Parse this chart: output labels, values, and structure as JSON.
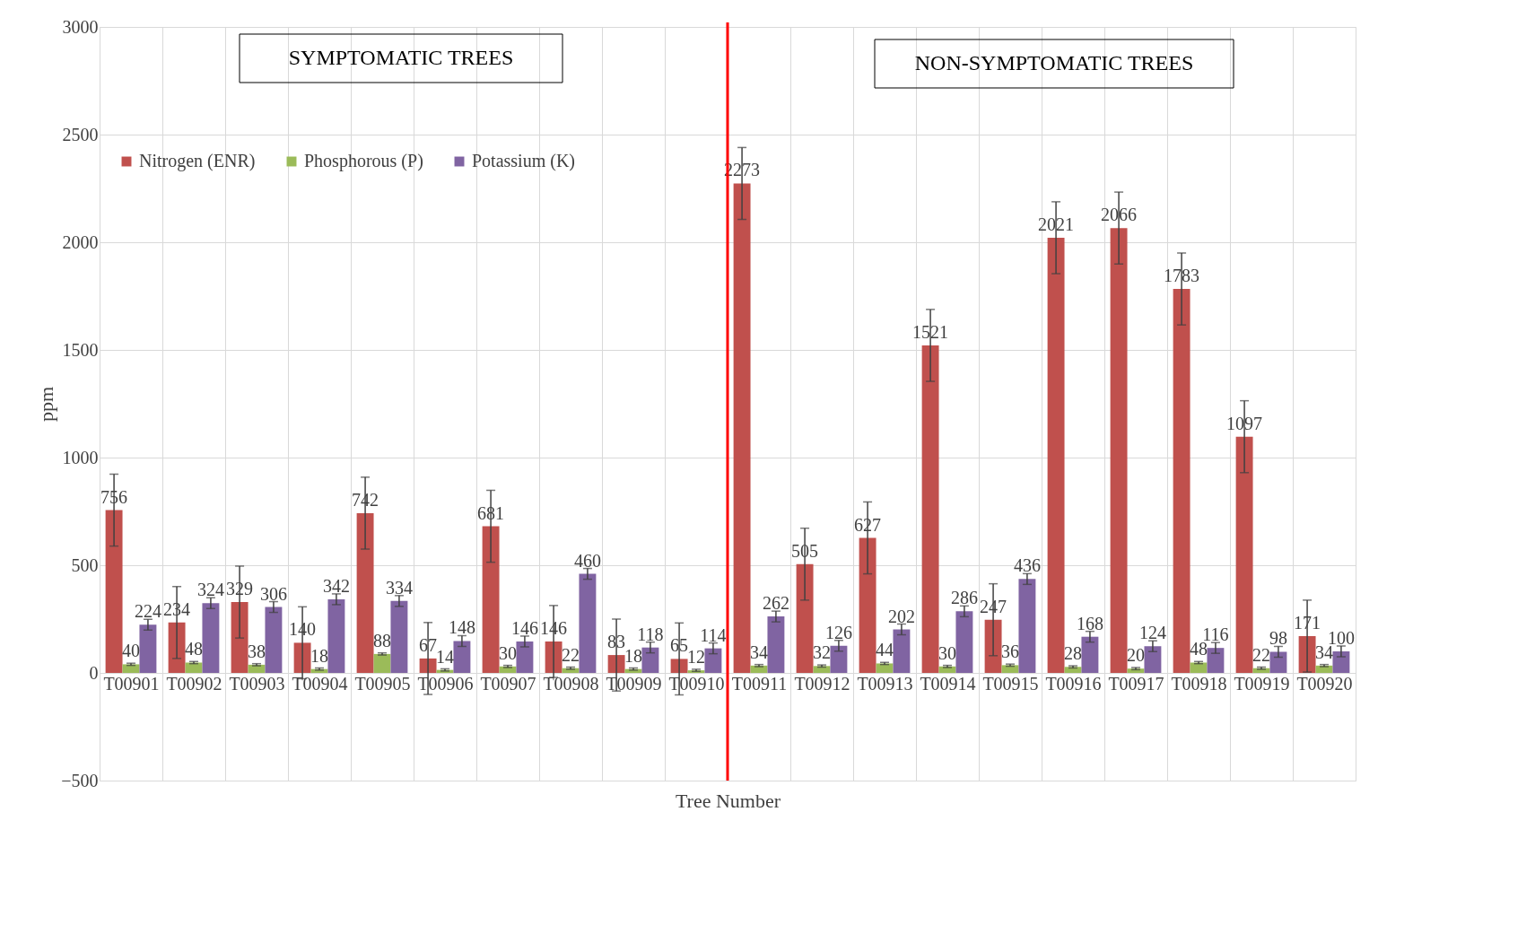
{
  "chart_data": {
    "type": "bar",
    "xlabel": "Tree Number",
    "ylabel": "ppm",
    "categories": [
      "T00901",
      "T00902",
      "T00903",
      "T00904",
      "T00905",
      "T00906",
      "T00907",
      "T00908",
      "T00909",
      "T00910",
      "T00911",
      "T00912",
      "T00913",
      "T00914",
      "T00915",
      "T00916",
      "T00917",
      "T00918",
      "T00919",
      "T00920"
    ],
    "series": [
      {
        "name": "Nitrogen (ENR)",
        "color": "#c0504d",
        "values": [
          756,
          234,
          329,
          140,
          742,
          67,
          681,
          146,
          83,
          65,
          2273,
          505,
          627,
          1521,
          247,
          2021,
          2066,
          1783,
          1097,
          171
        ],
        "errors": [
          167,
          167,
          167,
          167,
          167,
          167,
          167,
          167,
          167,
          167,
          167,
          167,
          167,
          167,
          167,
          167,
          167,
          167,
          167,
          167
        ]
      },
      {
        "name": "Phosphorous (P)",
        "color": "#9bbb59",
        "values": [
          40,
          48,
          38,
          18,
          88,
          14,
          30,
          22,
          18,
          12,
          34,
          32,
          44,
          30,
          36,
          28,
          20,
          48,
          22,
          34
        ],
        "errors": [
          5,
          5,
          5,
          5,
          5,
          5,
          5,
          5,
          5,
          5,
          5,
          5,
          5,
          5,
          5,
          5,
          5,
          5,
          5,
          5
        ]
      },
      {
        "name": "Potassium (K)",
        "color": "#8064a2",
        "values": [
          224,
          324,
          306,
          342,
          334,
          148,
          146,
          460,
          118,
          114,
          262,
          126,
          202,
          286,
          436,
          168,
          124,
          116,
          98,
          100
        ],
        "errors": [
          25,
          25,
          25,
          25,
          25,
          25,
          25,
          25,
          25,
          25,
          25,
          25,
          25,
          25,
          25,
          25,
          25,
          25,
          25,
          25
        ]
      }
    ],
    "ylim": [
      -500,
      3000
    ],
    "yticks": [
      -500,
      0,
      500,
      1000,
      1500,
      2000,
      2500,
      3000
    ],
    "grid": true,
    "legend": "top left",
    "data_labels": true,
    "ref_lines": [
      {
        "axis": "x",
        "value": "T00911",
        "color": "#ff0000"
      }
    ],
    "annotations": [
      "SYMPTOMATIC TREES",
      "NON-SYMPTOMATIC TREES"
    ]
  }
}
